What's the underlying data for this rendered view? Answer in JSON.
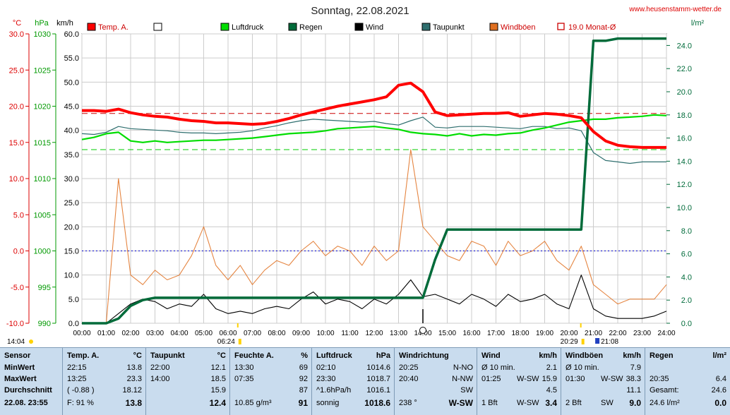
{
  "title": "Sonntag, 22.08.2021",
  "website": "www.heusenstamm-wetter.de",
  "units": {
    "temp": "°C",
    "press": "hPa",
    "wind": "km/h",
    "rain": "l/m²"
  },
  "axes": {
    "temp_ticks": [
      "30.0",
      "25.0",
      "20.0",
      "15.0",
      "10.0",
      "5.0",
      "0.0",
      "-5.0",
      "-10.0"
    ],
    "press_ticks": [
      "1030",
      "1025",
      "1020",
      "1015",
      "1010",
      "1005",
      "1000",
      "995",
      "990"
    ],
    "wind_ticks": [
      "60.0",
      "55.0",
      "50.0",
      "45.0",
      "40.0",
      "35.0",
      "30.0",
      "25.0",
      "20.0",
      "15.0",
      "10.0",
      "5.0",
      "0.0"
    ],
    "rain_ticks": [
      "24.0",
      "22.0",
      "20.0",
      "18.0",
      "16.0",
      "14.0",
      "12.0",
      "10.0",
      "8.0",
      "6.0",
      "4.0",
      "2.0",
      "0.0"
    ],
    "x_ticks": [
      "00:00",
      "01:00",
      "02:00",
      "03:00",
      "04:00",
      "05:00",
      "06:00",
      "07:00",
      "08:00",
      "09:00",
      "10:00",
      "11:00",
      "12:00",
      "13:00",
      "14:00",
      "15:00",
      "16:00",
      "17:00",
      "18:00",
      "19:00",
      "20:00",
      "21:00",
      "22:00",
      "23:00",
      "24:00"
    ]
  },
  "markers": {
    "start": "14:04",
    "sunrise": "06:24",
    "sunset": "20:29",
    "moon": "21:08"
  },
  "legend": [
    {
      "label": "Temp. A.",
      "color": "#ff0000"
    },
    {
      "label": "",
      "color": "#ffffff"
    },
    {
      "label": "Luftdruck",
      "color": "#00dd00"
    },
    {
      "label": "Regen",
      "color": "#006b3a"
    },
    {
      "label": "Wind",
      "color": "#000000"
    },
    {
      "label": "Taupunkt",
      "color": "#2f6f6f"
    },
    {
      "label": "Windböen",
      "color": "#e07020"
    },
    {
      "label": "19.0 Monat-Ø",
      "color": "#cc0000"
    }
  ],
  "chart_data": {
    "type": "line",
    "title": "Sonntag, 22.08.2021",
    "x_hours": [
      0,
      0.5,
      1,
      1.5,
      2,
      2.5,
      3,
      3.5,
      4,
      4.5,
      5,
      5.5,
      6,
      6.5,
      7,
      7.5,
      8,
      8.5,
      9,
      9.5,
      10,
      10.5,
      11,
      11.5,
      12,
      12.5,
      13,
      13.5,
      14,
      14.5,
      15,
      15.5,
      16,
      16.5,
      17,
      17.5,
      18,
      18.5,
      19,
      19.5,
      20,
      20.5,
      21,
      21.5,
      22,
      22.5,
      23,
      23.5,
      24
    ],
    "series": [
      {
        "name": "Temp. A.",
        "axis": "temp",
        "color": "#ff0000",
        "values": [
          19.4,
          19.4,
          19.3,
          19.6,
          19.1,
          18.8,
          18.6,
          18.5,
          18.2,
          18.0,
          17.9,
          17.7,
          17.7,
          17.6,
          17.5,
          17.6,
          17.9,
          18.3,
          18.8,
          19.2,
          19.6,
          20.0,
          20.3,
          20.6,
          20.9,
          21.3,
          22.9,
          23.2,
          22.0,
          19.2,
          18.7,
          18.8,
          18.9,
          19.0,
          19.0,
          19.1,
          18.6,
          18.8,
          19.0,
          18.9,
          18.7,
          18.4,
          16.5,
          15.2,
          14.6,
          14.4,
          14.3,
          14.3,
          14.3
        ]
      },
      {
        "name": "Taupunkt",
        "axis": "temp",
        "color": "#2f6f6f",
        "values": [
          16.2,
          16.1,
          16.4,
          17.2,
          16.9,
          16.8,
          16.7,
          16.6,
          16.4,
          16.3,
          16.3,
          16.2,
          16.3,
          16.4,
          16.6,
          17.0,
          17.3,
          17.7,
          18.0,
          18.2,
          18.1,
          18.0,
          17.9,
          17.8,
          17.9,
          17.6,
          17.4,
          18.0,
          18.5,
          17.1,
          17.0,
          17.2,
          17.2,
          17.2,
          17.1,
          17.0,
          16.9,
          17.2,
          17.2,
          16.9,
          17.0,
          16.6,
          13.6,
          12.5,
          12.3,
          12.1,
          12.3,
          12.3,
          12.3
        ]
      },
      {
        "name": "Luftdruck",
        "axis": "press",
        "color": "#00dd00",
        "values": [
          1015.4,
          1015.7,
          1016.2,
          1016.4,
          1015.2,
          1015.0,
          1015.2,
          1015.0,
          1015.1,
          1015.2,
          1015.3,
          1015.3,
          1015.4,
          1015.5,
          1015.6,
          1015.8,
          1016.0,
          1016.2,
          1016.3,
          1016.4,
          1016.6,
          1016.9,
          1017.0,
          1017.1,
          1017.2,
          1017.0,
          1016.8,
          1016.4,
          1016.2,
          1016.1,
          1015.9,
          1016.2,
          1015.9,
          1016.1,
          1016.0,
          1016.2,
          1016.3,
          1016.7,
          1017.0,
          1017.4,
          1017.8,
          1018.0,
          1018.2,
          1018.2,
          1018.4,
          1018.5,
          1018.6,
          1018.8,
          1018.7
        ]
      },
      {
        "name": "Regen",
        "axis": "rain",
        "color": "#006b3a",
        "values": [
          0,
          0,
          0,
          0.4,
          1.5,
          2.0,
          2.2,
          2.2,
          2.2,
          2.2,
          2.2,
          2.2,
          2.2,
          2.2,
          2.2,
          2.2,
          2.2,
          2.2,
          2.2,
          2.2,
          2.2,
          2.2,
          2.2,
          2.2,
          2.2,
          2.2,
          2.2,
          2.2,
          2.2,
          5.5,
          8.1,
          8.1,
          8.1,
          8.1,
          8.1,
          8.1,
          8.1,
          8.1,
          8.1,
          8.1,
          8.1,
          8.1,
          24.4,
          24.4,
          24.6,
          24.6,
          24.6,
          24.6,
          24.6
        ]
      },
      {
        "name": "Wind",
        "axis": "wind",
        "color": "#000000",
        "values": [
          0,
          0,
          0,
          2.0,
          4.0,
          5.0,
          4.5,
          3.0,
          4.0,
          3.5,
          6.0,
          3.0,
          2.0,
          2.5,
          2.0,
          3.0,
          3.5,
          3.0,
          5.0,
          6.5,
          4.0,
          5.0,
          4.5,
          3.0,
          5.0,
          4.0,
          6.0,
          9.0,
          5.5,
          6.0,
          5.0,
          4.0,
          6.0,
          5.0,
          3.5,
          6.0,
          4.5,
          5.0,
          6.0,
          4.0,
          3.0,
          10.0,
          3.0,
          1.5,
          1.0,
          1.0,
          1.0,
          1.5,
          2.5
        ]
      },
      {
        "name": "Windböen",
        "axis": "wind",
        "color": "#e07020",
        "values": [
          0,
          0,
          0,
          30.0,
          10.0,
          8.0,
          11.0,
          9.0,
          10.0,
          14.0,
          20.0,
          12.0,
          9.0,
          12.0,
          8.0,
          11.0,
          13.0,
          12.0,
          15.0,
          17.0,
          14.0,
          16.0,
          15.0,
          12.0,
          16.0,
          13.0,
          15.0,
          36.0,
          20.0,
          17.0,
          14.0,
          13.0,
          17.0,
          16.0,
          12.0,
          17.0,
          14.0,
          15.0,
          17.0,
          13.0,
          11.0,
          16.0,
          8.0,
          6.0,
          4.0,
          5.0,
          5.0,
          5.0,
          8.0
        ]
      }
    ],
    "reference_lines": [
      {
        "label": "19.0 Monat-Ø",
        "axis": "temp",
        "value": 19.0,
        "color": "#cc0000",
        "style": "dashed"
      },
      {
        "axis": "temp",
        "value": 0.0,
        "color": "#0000cc",
        "style": "dotted"
      },
      {
        "axis": "press",
        "value": 1014.0,
        "color": "#00cc00",
        "style": "dashed"
      }
    ],
    "ylim_temp": [
      -10,
      30
    ],
    "ylim_press": [
      990,
      1030
    ],
    "ylim_wind": [
      0,
      60
    ],
    "ylim_rain": [
      0,
      25
    ],
    "xlim": [
      0,
      24
    ]
  },
  "stats": {
    "sensor": {
      "header": "Sensor",
      "rows": [
        "MinWert",
        "MaxWert",
        "Durchschnitt",
        "22.08. 23:55"
      ]
    },
    "temp": {
      "header": "Temp. A.",
      "unit": "°C",
      "rows": [
        [
          "22:15",
          "13.8"
        ],
        [
          "13:25",
          "23.3"
        ],
        [
          "( -0.88 )",
          "18.12"
        ],
        [
          "F: 91 %",
          "13.8"
        ]
      ]
    },
    "taupunkt": {
      "header": "Taupunkt",
      "unit": "°C",
      "rows": [
        [
          "22:00",
          "12.1"
        ],
        [
          "14:00",
          "18.5"
        ],
        [
          "",
          "15.9"
        ],
        [
          "",
          "12.4"
        ]
      ]
    },
    "feuchte": {
      "header": "Feuchte A.",
      "unit": "%",
      "rows": [
        [
          "13:30",
          "69"
        ],
        [
          "07:35",
          "92"
        ],
        [
          "",
          "87"
        ],
        [
          "10.85 g/m³",
          "91"
        ]
      ]
    },
    "luftdruck": {
      "header": "Luftdruck",
      "unit": "hPa",
      "rows": [
        [
          "02:10",
          "1014.6"
        ],
        [
          "23:30",
          "1018.7"
        ],
        [
          "^1.6hPa/h",
          "1016.1"
        ],
        [
          "sonnig",
          "1018.6"
        ]
      ]
    },
    "windrichtung": {
      "header": "Windrichtung",
      "rows": [
        [
          "20:25",
          "N-NO"
        ],
        [
          "20:40",
          "N-NW"
        ],
        [
          "",
          "SW"
        ],
        [
          "238 °",
          "W-SW"
        ]
      ]
    },
    "wind": {
      "header": "Wind",
      "unit": "km/h",
      "rows": [
        [
          "Ø 10 min.",
          "",
          "2.1"
        ],
        [
          "01:25",
          "W-SW",
          "15.9"
        ],
        [
          "",
          "",
          "4.5"
        ],
        [
          "1 Bft",
          "W-SW",
          "3.4"
        ]
      ]
    },
    "windboeen": {
      "header": "Windböen",
      "unit": "km/h",
      "rows": [
        [
          "Ø 10 min.",
          "",
          "7.9"
        ],
        [
          "01:30",
          "W-SW",
          "38.3"
        ],
        [
          "",
          "",
          "11.1"
        ],
        [
          "2 Bft",
          "SW",
          "9.0"
        ]
      ]
    },
    "regen": {
      "header": "Regen",
      "unit": "l/m²",
      "rows": [
        [
          "",
          ""
        ],
        [
          "20:35",
          "6.4"
        ],
        [
          "Gesamt:",
          "24.6"
        ],
        [
          "24.6 l/m²",
          "0.0"
        ]
      ]
    }
  }
}
